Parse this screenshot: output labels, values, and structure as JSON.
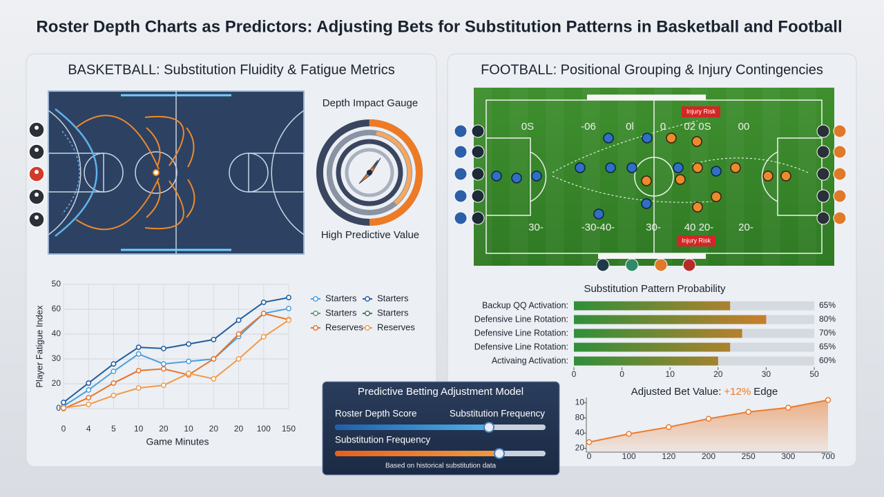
{
  "title": "Roster Depth Charts as Predictors: Adjusting Bets for Substitution Patterns in Basketball and Football",
  "basketball": {
    "heading": "BASKETBALL: Substitution Fluidity & Fatigue Metrics",
    "gauge_title": "Depth Impact Gauge",
    "gauge_caption": "High Predictive Value"
  },
  "football": {
    "heading": "FOOTBALL: Positional Grouping & Injury Contingencies",
    "yard_numbers_top": [
      "0S",
      "-06",
      "0l",
      "0",
      "02 0S",
      "00"
    ],
    "yard_numbers_bottom": [
      "30-",
      "-30-40-",
      "30-",
      "40 20-",
      "20-"
    ],
    "injury_flags": [
      "Injury Risk",
      "Injury Risk"
    ]
  },
  "model": {
    "title": "Predictive Betting Adjustment Model",
    "slider_1_label": "Roster Depth Score",
    "slider_1_label_right": "Substitution Frequency",
    "slider_2_label": "Substitution Frequency",
    "footnote": "Based on historical substitution data"
  },
  "chart_data": [
    {
      "type": "line",
      "x_label": "Game Minutes",
      "y_label": "Player Fatigue Index",
      "categories": [
        "0",
        "4",
        "5",
        "10",
        "20",
        "10",
        "20",
        "20",
        "100",
        "150"
      ],
      "ylim": [
        0,
        50
      ],
      "yticks": [
        0,
        {
          "value": 10,
          "label": "20"
        },
        {
          "value": 20,
          "label": "30"
        },
        {
          "value": 30,
          "label": "40"
        },
        {
          "value": 40,
          "label": "60"
        },
        50
      ],
      "grid": true,
      "series": [
        {
          "name": "Starters",
          "color": "#4aa0dc",
          "values": [
            1,
            7.5,
            15,
            22,
            18,
            19,
            20,
            29,
            38.3,
            40.3
          ]
        },
        {
          "name": "Starters",
          "color": "#1f5e9e",
          "values": [
            2.5,
            10.3,
            18,
            24.7,
            24.2,
            26,
            27.8,
            35.6,
            42.8,
            44.7
          ]
        },
        {
          "name": "Starters",
          "color": "#5a9a72",
          "values": [
            null,
            null,
            null,
            null,
            null,
            null,
            null,
            null,
            null,
            null
          ]
        },
        {
          "name": "Starters",
          "color": "#3b7a55",
          "values": [
            null,
            null,
            null,
            null,
            null,
            null,
            null,
            null,
            null,
            null
          ]
        },
        {
          "name": "Reserves",
          "color": "#e5742a",
          "values": [
            0,
            4.4,
            10.3,
            15.3,
            16,
            13.6,
            20,
            30,
            38.3,
            35.8
          ]
        },
        {
          "name": "Reserves",
          "color": "#f09a45",
          "values": [
            0.3,
            1.7,
            5.3,
            8.3,
            9.4,
            14.2,
            12,
            20,
            28.9,
            35.6
          ]
        }
      ]
    },
    {
      "type": "hbar",
      "title": "Substitution Pattern Probability",
      "categories": [
        "Backup QQ Activation:",
        "Defensive Line Rotation:",
        "Defensive Line Rotation:",
        "Defensive Line Rotation:",
        "Activaing Activation:"
      ],
      "values": [
        65,
        80,
        70,
        65,
        60
      ],
      "value_labels": [
        "65%",
        "80%",
        "70%",
        "65%",
        "60%"
      ],
      "colors": [
        "#2f8f3a",
        "#f07a28"
      ],
      "xlim": [
        0,
        100
      ],
      "xticks": [
        0,
        {
          "value": 20,
          "label": "0"
        },
        {
          "value": 40,
          "label": "10"
        },
        {
          "value": 60,
          "label": "20"
        },
        {
          "value": 80,
          "label": "30"
        },
        {
          "value": 100,
          "label": "50"
        }
      ]
    },
    {
      "type": "area",
      "title_prefix": "Adjusted Bet Value:",
      "title_highlight": "+12%",
      "title_suffix": "Edge",
      "categories": [
        "0",
        "100",
        "120",
        "200",
        "250",
        "300",
        "700"
      ],
      "values": [
        28.2,
        39,
        48,
        59,
        68,
        73.6,
        83.6
      ],
      "color": "#ec7a2c",
      "ylim": [
        15,
        85
      ],
      "yticks": [
        {
          "value": 80,
          "label": "10"
        },
        {
          "value": 60,
          "label": "80"
        },
        {
          "value": 40,
          "label": "40"
        },
        20
      ]
    }
  ]
}
